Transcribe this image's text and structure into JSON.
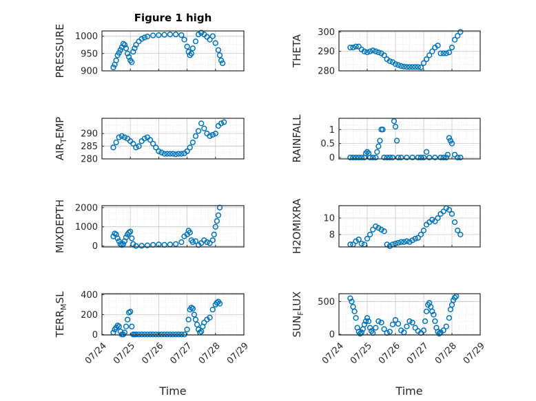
{
  "figure": {
    "title": "Figure 1 high",
    "marker_color": "#0072BD",
    "axis_color": "#262626",
    "grid": "major and minor dotted",
    "xlabel": "Time",
    "xtick_labels": [
      "07/24",
      "07/25",
      "07/26",
      "07/27",
      "07/28",
      "07/29"
    ]
  },
  "chart_data": [
    {
      "type": "scatter",
      "ylabel_main": "PRESSURE",
      "ylabel_sub": "",
      "ylim": [
        900,
        1015
      ],
      "yticks": [
        900,
        950,
        1000
      ],
      "xlim": [
        0,
        5
      ],
      "x": [
        0.4,
        0.45,
        0.5,
        0.55,
        0.6,
        0.65,
        0.7,
        0.75,
        0.8,
        0.85,
        0.9,
        0.95,
        1.0,
        1.05,
        1.1,
        1.15,
        1.2,
        1.3,
        1.4,
        1.5,
        1.6,
        1.8,
        2.0,
        2.2,
        2.4,
        2.6,
        2.8,
        2.9,
        3.0,
        3.05,
        3.1,
        3.15,
        3.2,
        3.3,
        3.4,
        3.5,
        3.6,
        3.7,
        3.8,
        3.9,
        4.0,
        4.1,
        4.15,
        4.2,
        4.25
      ],
      "y": [
        910,
        918,
        930,
        945,
        952,
        960,
        968,
        978,
        975,
        965,
        950,
        940,
        930,
        925,
        955,
        965,
        975,
        985,
        992,
        996,
        999,
        1002,
        1003,
        1004,
        1005,
        1005,
        1003,
        990,
        970,
        955,
        945,
        950,
        965,
        985,
        1005,
        1010,
        1005,
        998,
        990,
        1000,
        980,
        960,
        945,
        930,
        922
      ]
    },
    {
      "type": "scatter",
      "ylabel_main": "THETA",
      "ylabel_sub": "",
      "ylim": [
        280,
        300.5
      ],
      "yticks": [
        280,
        290,
        300
      ],
      "xlim": [
        0,
        5
      ],
      "x": [
        0.4,
        0.5,
        0.6,
        0.7,
        0.8,
        0.9,
        1.0,
        1.1,
        1.2,
        1.3,
        1.4,
        1.5,
        1.6,
        1.7,
        1.8,
        1.9,
        2.0,
        2.1,
        2.2,
        2.3,
        2.4,
        2.5,
        2.6,
        2.7,
        2.8,
        2.9,
        3.0,
        3.1,
        3.2,
        3.3,
        3.4,
        3.5,
        3.6,
        3.7,
        3.8,
        3.9,
        4.0,
        4.1,
        4.2,
        4.3
      ],
      "y": [
        292,
        292,
        292.5,
        292.5,
        291,
        290,
        289.5,
        290,
        290.5,
        290,
        289.5,
        289,
        288,
        286,
        285,
        284.5,
        283.5,
        283,
        282.5,
        282.2,
        282,
        282,
        282,
        282,
        282,
        281.8,
        284,
        286,
        288,
        290,
        292,
        293,
        289,
        289,
        289,
        289.5,
        292,
        296,
        298,
        300
      ]
    },
    {
      "type": "scatter",
      "ylabel_main": "AIR",
      "ylabel_sub": "T",
      "ylabel_tail": "EMP",
      "ylim": [
        280,
        296
      ],
      "yticks": [
        280,
        285,
        290
      ],
      "xlim": [
        0,
        5
      ],
      "x": [
        0.4,
        0.5,
        0.6,
        0.7,
        0.8,
        0.9,
        1.0,
        1.1,
        1.2,
        1.3,
        1.4,
        1.5,
        1.6,
        1.7,
        1.8,
        1.9,
        2.0,
        2.1,
        2.2,
        2.3,
        2.4,
        2.5,
        2.6,
        2.7,
        2.8,
        2.9,
        3.0,
        3.1,
        3.2,
        3.3,
        3.4,
        3.5,
        3.6,
        3.7,
        3.8,
        3.9,
        4.0,
        4.1,
        4.2,
        4.3
      ],
      "y": [
        284.5,
        286.5,
        288.5,
        289,
        288.5,
        288,
        287,
        286,
        284.5,
        285,
        287,
        288,
        288.5,
        287.5,
        286,
        284.5,
        283,
        282.5,
        282,
        282,
        282,
        282,
        281.8,
        282,
        282,
        282.2,
        283,
        284.5,
        286.5,
        289,
        291,
        294,
        292,
        290,
        289,
        289.5,
        290,
        293,
        294,
        294.5
      ]
    },
    {
      "type": "scatter",
      "ylabel_main": "RAINFALL",
      "ylabel_sub": "",
      "ylim": [
        -0.05,
        1.4
      ],
      "yticks": [
        0,
        0.5,
        1
      ],
      "xlim": [
        0,
        5
      ],
      "x": [
        0.4,
        0.5,
        0.6,
        0.7,
        0.8,
        0.9,
        0.95,
        1.0,
        1.05,
        1.1,
        1.2,
        1.3,
        1.35,
        1.4,
        1.45,
        1.5,
        1.55,
        1.6,
        1.7,
        1.8,
        1.9,
        1.95,
        2.0,
        2.05,
        2.1,
        2.2,
        2.4,
        2.6,
        2.8,
        2.9,
        3.0,
        3.1,
        3.2,
        3.4,
        3.6,
        3.7,
        3.8,
        3.85,
        3.9,
        3.95,
        4.0,
        4.1,
        4.2,
        4.3
      ],
      "y": [
        0,
        0,
        0,
        0,
        0,
        0,
        0.15,
        0.2,
        0.15,
        0,
        0,
        0,
        0.2,
        0.4,
        0.6,
        1.0,
        1.0,
        0,
        0,
        0,
        0,
        1.3,
        1.1,
        0.6,
        0,
        0,
        0,
        0,
        0,
        0,
        0,
        0.2,
        0,
        0,
        0,
        0,
        0,
        0.1,
        0.7,
        0.6,
        0.5,
        0.1,
        0,
        0
      ]
    },
    {
      "type": "scatter",
      "ylabel_main": "MIXDEPTH",
      "ylabel_sub": "",
      "ylim": [
        -50,
        2100
      ],
      "yticks": [
        0,
        1000,
        2000
      ],
      "xlim": [
        0,
        5
      ],
      "x": [
        0.4,
        0.45,
        0.5,
        0.55,
        0.6,
        0.65,
        0.7,
        0.75,
        0.8,
        0.85,
        0.9,
        0.95,
        1.0,
        1.05,
        1.1,
        1.2,
        1.4,
        1.6,
        1.8,
        2.0,
        2.2,
        2.4,
        2.6,
        2.8,
        2.9,
        3.0,
        3.05,
        3.1,
        3.15,
        3.2,
        3.3,
        3.4,
        3.5,
        3.6,
        3.7,
        3.8,
        3.9,
        3.95,
        4.0,
        4.05,
        4.1,
        4.15
      ],
      "y": [
        500,
        650,
        600,
        400,
        250,
        100,
        50,
        100,
        250,
        450,
        600,
        700,
        750,
        400,
        100,
        0,
        10,
        30,
        60,
        80,
        60,
        80,
        100,
        200,
        500,
        600,
        800,
        700,
        300,
        200,
        250,
        50,
        150,
        300,
        200,
        150,
        300,
        600,
        1000,
        1300,
        1600,
        2000
      ]
    },
    {
      "type": "scatter",
      "ylabel_main": "H2OMIXRA",
      "ylabel_sub": "",
      "ylim": [
        6.5,
        11.5
      ],
      "yticks": [
        8,
        10
      ],
      "xlim": [
        0,
        5
      ],
      "x": [
        0.4,
        0.5,
        0.6,
        0.7,
        0.8,
        0.9,
        1.0,
        1.1,
        1.2,
        1.3,
        1.4,
        1.5,
        1.6,
        1.7,
        1.8,
        1.9,
        2.0,
        2.1,
        2.2,
        2.3,
        2.4,
        2.5,
        2.6,
        2.7,
        2.8,
        2.9,
        3.0,
        3.1,
        3.2,
        3.3,
        3.4,
        3.5,
        3.6,
        3.7,
        3.8,
        3.9,
        4.0,
        4.1,
        4.2,
        4.3
      ],
      "y": [
        6.8,
        6.8,
        7.2,
        7.4,
        6.9,
        6.8,
        7.5,
        8.0,
        8.6,
        9.0,
        8.8,
        8.6,
        8.4,
        6.8,
        6.6,
        6.8,
        6.9,
        7.0,
        7.1,
        7.1,
        7.2,
        7.1,
        7.3,
        7.5,
        7.6,
        8.0,
        8.5,
        9.2,
        9.5,
        9.8,
        9.6,
        10.0,
        10.5,
        10.8,
        11.2,
        11.0,
        10.5,
        9.5,
        8.5,
        8.0
      ]
    },
    {
      "type": "scatter",
      "ylabel_main": "TERR",
      "ylabel_sub": "M",
      "ylabel_tail": "SL",
      "ylim": [
        -5,
        410
      ],
      "yticks": [
        0,
        200,
        400
      ],
      "xlim": [
        0,
        5
      ],
      "x": [
        0.4,
        0.45,
        0.5,
        0.55,
        0.6,
        0.65,
        0.7,
        0.75,
        0.8,
        0.85,
        0.9,
        0.95,
        1.0,
        1.05,
        1.1,
        1.15,
        1.2,
        1.3,
        1.4,
        1.5,
        1.6,
        1.7,
        1.8,
        1.9,
        2.0,
        2.1,
        2.2,
        2.3,
        2.4,
        2.5,
        2.6,
        2.7,
        2.8,
        2.9,
        3.0,
        3.05,
        3.1,
        3.15,
        3.2,
        3.25,
        3.3,
        3.35,
        3.4,
        3.45,
        3.5,
        3.55,
        3.6,
        3.7,
        3.8,
        3.9,
        4.0,
        4.05,
        4.1,
        4.15
      ],
      "y": [
        20,
        50,
        70,
        90,
        80,
        30,
        0,
        0,
        20,
        80,
        150,
        220,
        230,
        80,
        0,
        0,
        0,
        0,
        0,
        0,
        0,
        0,
        0,
        0,
        0,
        0,
        0,
        0,
        0,
        0,
        0,
        0,
        0,
        0,
        50,
        150,
        250,
        270,
        260,
        200,
        150,
        100,
        50,
        20,
        30,
        80,
        120,
        150,
        170,
        250,
        300,
        320,
        330,
        310
      ]
    },
    {
      "type": "scatter",
      "ylabel_main": "SUN",
      "ylabel_sub": "F",
      "ylabel_tail": "LUX",
      "ylim": [
        -10,
        620
      ],
      "yticks": [
        0,
        500
      ],
      "xlim": [
        0,
        5
      ],
      "x": [
        0.4,
        0.45,
        0.5,
        0.55,
        0.6,
        0.65,
        0.7,
        0.75,
        0.8,
        0.85,
        0.9,
        0.95,
        1.0,
        1.05,
        1.1,
        1.15,
        1.2,
        1.3,
        1.4,
        1.5,
        1.6,
        1.7,
        1.8,
        1.9,
        2.0,
        2.1,
        2.2,
        2.3,
        2.4,
        2.5,
        2.6,
        2.7,
        2.8,
        2.9,
        3.0,
        3.05,
        3.1,
        3.15,
        3.2,
        3.25,
        3.3,
        3.35,
        3.4,
        3.45,
        3.5,
        3.55,
        3.6,
        3.7,
        3.8,
        3.9,
        3.95,
        4.0,
        4.05,
        4.1,
        4.15
      ],
      "y": [
        550,
        500,
        420,
        350,
        250,
        100,
        40,
        10,
        30,
        80,
        150,
        200,
        250,
        200,
        100,
        50,
        20,
        100,
        200,
        180,
        80,
        20,
        40,
        150,
        220,
        160,
        60,
        30,
        120,
        200,
        180,
        100,
        50,
        20,
        60,
        200,
        350,
        450,
        480,
        420,
        350,
        300,
        200,
        100,
        40,
        10,
        30,
        60,
        120,
        250,
        380,
        450,
        520,
        560,
        580
      ]
    }
  ]
}
